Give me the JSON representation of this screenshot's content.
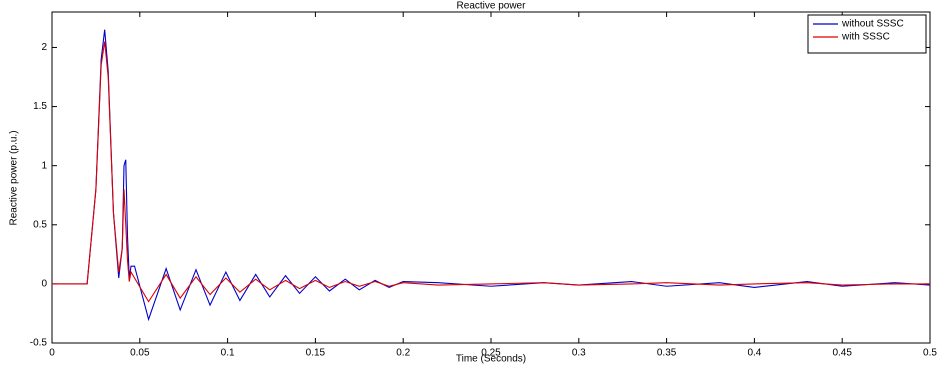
{
  "chart_data": {
    "type": "line",
    "title": "Reactive power",
    "xlabel": "Time (Seconds)",
    "ylabel": "Reactive power (p.u.)",
    "x": [
      0,
      0.02,
      0.025,
      0.028,
      0.03,
      0.032,
      0.035,
      0.038,
      0.04,
      0.041,
      0.042,
      0.043,
      0.044,
      0.045,
      0.047,
      0.055,
      0.065,
      0.073,
      0.082,
      0.09,
      0.099,
      0.107,
      0.116,
      0.124,
      0.133,
      0.141,
      0.15,
      0.158,
      0.167,
      0.175,
      0.184,
      0.192,
      0.2,
      0.22,
      0.25,
      0.28,
      0.3,
      0.33,
      0.35,
      0.38,
      0.4,
      0.43,
      0.45,
      0.48,
      0.5
    ],
    "series": [
      {
        "name": "without SSSC",
        "color": "#0000cc",
        "values": [
          0,
          0,
          0.8,
          1.9,
          2.15,
          1.8,
          0.6,
          0.05,
          0.3,
          1.0,
          1.05,
          0.4,
          0.05,
          0.15,
          0.15,
          -0.3,
          0.13,
          -0.22,
          0.12,
          -0.18,
          0.1,
          -0.14,
          0.08,
          -0.11,
          0.07,
          -0.08,
          0.06,
          -0.06,
          0.04,
          -0.05,
          0.03,
          -0.03,
          0.02,
          0.01,
          -0.02,
          0.01,
          -0.01,
          0.02,
          -0.02,
          0.01,
          -0.03,
          0.02,
          -0.02,
          0.01,
          -0.01
        ]
      },
      {
        "name": "with SSSC",
        "color": "#dd0000",
        "values": [
          0,
          0,
          0.8,
          1.85,
          2.05,
          1.75,
          0.6,
          0.1,
          0.3,
          0.8,
          0.5,
          0.2,
          0.02,
          0.1,
          0.05,
          -0.15,
          0.08,
          -0.12,
          0.06,
          -0.09,
          0.05,
          -0.07,
          0.04,
          -0.05,
          0.03,
          -0.04,
          0.03,
          -0.03,
          0.02,
          -0.02,
          0.02,
          -0.02,
          0.01,
          -0.01,
          0,
          0.01,
          -0.01,
          0,
          0.01,
          -0.01,
          0,
          0.01,
          -0.01,
          0,
          0
        ]
      }
    ],
    "xlim": [
      0,
      0.5
    ],
    "xticks": [
      0,
      0.05,
      0.1,
      0.15,
      0.2,
      0.25,
      0.3,
      0.35,
      0.4,
      0.45,
      0.5
    ],
    "ylim": [
      -0.5,
      2.3
    ],
    "yticks": [
      -0.5,
      0,
      0.5,
      1,
      1.5,
      2
    ],
    "grid": false,
    "legend": "northeast"
  }
}
